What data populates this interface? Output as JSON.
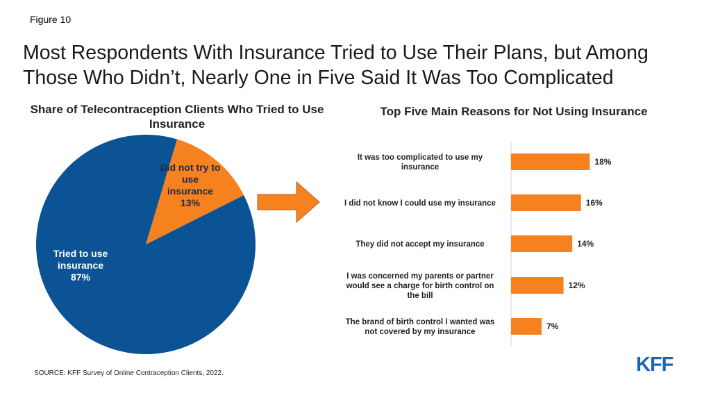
{
  "figure_label": "Figure 10",
  "headline": "Most Respondents With Insurance Tried to Use Their Plans, but Among Those Who Didn’t, Nearly One in Five Said It Was Too Complicated",
  "source": "SOURCE: KFF Survey of Online Contraception Clients, 2022.",
  "logo": "KFF",
  "colors": {
    "pie_tried": "#0b5394",
    "pie_not_tried": "#f5821f",
    "bars": "#f5821f",
    "arrow": "#f5821f",
    "logo": "#1d64b4"
  },
  "chart_data": [
    {
      "type": "pie",
      "title": "Share of Telecontraception Clients Who Tried to Use Insurance",
      "slices": [
        {
          "label": "Did not try to use insurance",
          "value": 13,
          "value_label": "13%"
        },
        {
          "label": "Tried to use insurance",
          "value": 87,
          "value_label": "87%"
        }
      ]
    },
    {
      "type": "bar",
      "orientation": "horizontal",
      "title": "Top Five Main Reasons for Not Using Insurance",
      "categories": [
        "It was too complicated to use my insurance",
        "I did not know I could use my insurance",
        "They did not accept my insurance",
        "I was concerned my parents or partner would see a charge for birth control on the bill",
        "The brand of birth control I wanted was not covered by my insurance"
      ],
      "values": [
        18,
        16,
        14,
        12,
        7
      ],
      "value_labels": [
        "18%",
        "16%",
        "14%",
        "12%",
        "7%"
      ]
    }
  ]
}
